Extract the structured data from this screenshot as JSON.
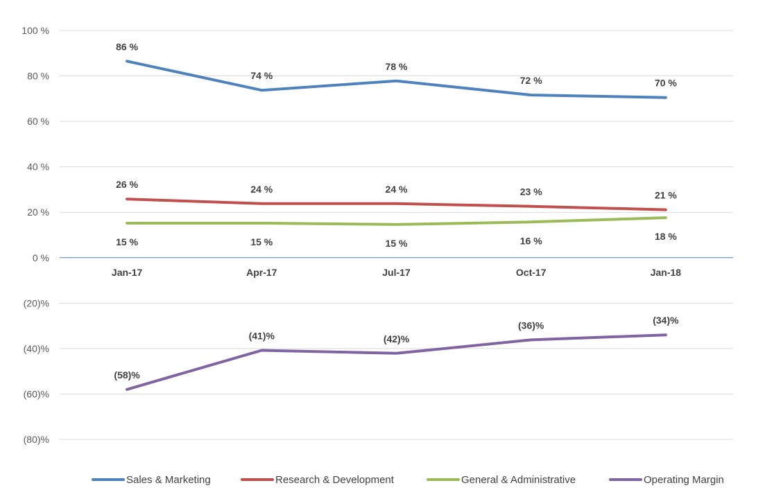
{
  "chart_data": {
    "type": "line",
    "categories": [
      "Jan-17",
      "Apr-17",
      "Jul-17",
      "Oct-17",
      "Jan-18"
    ],
    "ylim": [
      -80,
      100
    ],
    "yticks": [
      100,
      80,
      60,
      40,
      20,
      0,
      -20,
      -40,
      -60,
      -80
    ],
    "ytick_labels": [
      "100 %",
      "80 %",
      "60 %",
      "40 %",
      "20 %",
      "0 %",
      "(20)%",
      "(40)%",
      "(60)%",
      "(80)%"
    ],
    "grid": true,
    "legend_position": "bottom",
    "series": [
      {
        "name": "Sales & Marketing",
        "color": "#4f81bd",
        "values": [
          86.5,
          73.7,
          77.8,
          71.6,
          70.5
        ],
        "labels": [
          "86 %",
          "74 %",
          "78 %",
          "72 %",
          "70 %"
        ],
        "label_position": "above"
      },
      {
        "name": "Research & Development",
        "color": "#c0504d",
        "values": [
          25.8,
          23.8,
          23.8,
          22.6,
          21.1
        ],
        "labels": [
          "26 %",
          "24 %",
          "24 %",
          "23 %",
          "21 %"
        ],
        "label_position": "above"
      },
      {
        "name": "General & Administrative",
        "color": "#9bbb59",
        "values": [
          15.2,
          15.2,
          14.6,
          15.7,
          17.6
        ],
        "labels": [
          "15 %",
          "15 %",
          "15 %",
          "16 %",
          "18 %"
        ],
        "label_position": "below"
      },
      {
        "name": "Operating Margin",
        "color": "#8064a2",
        "values": [
          -58,
          -40.8,
          -42.1,
          -36.2,
          -34
        ],
        "labels": [
          "(58)%",
          "(41)%",
          "(42)%",
          "(36)%",
          "(34)%"
        ],
        "label_position": "above"
      }
    ]
  }
}
